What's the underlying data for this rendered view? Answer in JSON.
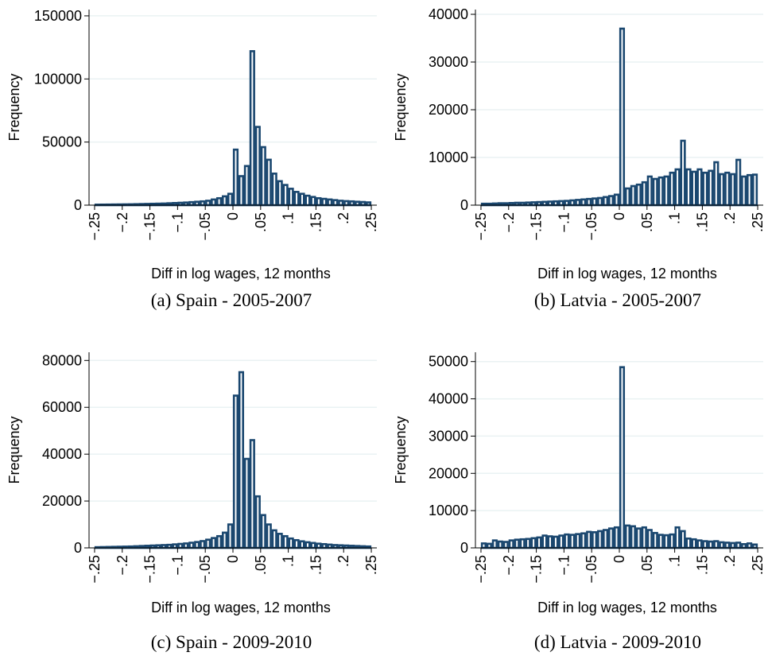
{
  "chart_data": [
    {
      "type": "histogram",
      "caption": "(a) Spain - 2005-2007",
      "xlabel": "Diff in log wages, 12 months",
      "ylabel": "Frequency",
      "color": "#1a476f",
      "grid": true,
      "bins": [
        -0.25,
        -0.24,
        -0.23,
        -0.22,
        -0.21,
        -0.2,
        -0.19,
        -0.18,
        -0.17,
        -0.16,
        -0.15,
        -0.14,
        -0.13,
        -0.12,
        -0.11,
        -0.1,
        -0.09,
        -0.08,
        -0.07,
        -0.06,
        -0.05,
        -0.04,
        -0.03,
        -0.02,
        -0.01,
        0,
        0.01,
        0.02,
        0.03,
        0.04,
        0.05,
        0.06,
        0.07,
        0.08,
        0.09,
        0.1,
        0.11,
        0.12,
        0.13,
        0.14,
        0.15,
        0.16,
        0.17,
        0.18,
        0.19,
        0.2,
        0.21,
        0.22,
        0.23,
        0.24,
        0.25
      ],
      "counts": [
        400,
        450,
        500,
        550,
        600,
        650,
        700,
        800,
        900,
        1000,
        1100,
        1200,
        1300,
        1500,
        1700,
        1900,
        2100,
        2400,
        2700,
        3000,
        3500,
        4500,
        5500,
        7000,
        9000,
        44000,
        23000,
        31000,
        122000,
        62000,
        46000,
        36000,
        25000,
        19000,
        16000,
        13000,
        10500,
        9000,
        7500,
        6500,
        5500,
        5000,
        4500,
        4000,
        3500,
        3200,
        3000,
        2700,
        2500,
        2200
      ],
      "xlim": [
        -0.26,
        0.26
      ],
      "ylim": [
        0,
        155000
      ],
      "xticks": [
        {
          "value": -0.25,
          "label": "−.25"
        },
        {
          "value": -0.2,
          "label": "−.2"
        },
        {
          "value": -0.15,
          "label": "−.15"
        },
        {
          "value": -0.1,
          "label": "−.1"
        },
        {
          "value": -0.05,
          "label": "−.05"
        },
        0,
        {
          "value": 0.05,
          "label": ".05"
        },
        {
          "value": 0.1,
          "label": ".1"
        },
        {
          "value": 0.15,
          "label": ".15"
        },
        {
          "value": 0.2,
          "label": ".2"
        },
        {
          "value": 0.25,
          "label": ".25"
        }
      ],
      "yticks": [
        0,
        50000,
        100000,
        150000
      ]
    },
    {
      "type": "histogram",
      "caption": "(b) Latvia - 2005-2007",
      "xlabel": "Diff in log wages, 12 months",
      "ylabel": "Frequency",
      "color": "#1a476f",
      "grid": true,
      "bins": [
        -0.25,
        -0.24,
        -0.23,
        -0.22,
        -0.21,
        -0.2,
        -0.19,
        -0.18,
        -0.17,
        -0.16,
        -0.15,
        -0.14,
        -0.13,
        -0.12,
        -0.11,
        -0.1,
        -0.09,
        -0.08,
        -0.07,
        -0.06,
        -0.05,
        -0.04,
        -0.03,
        -0.02,
        -0.01,
        0,
        0.01,
        0.02,
        0.03,
        0.04,
        0.05,
        0.06,
        0.07,
        0.08,
        0.09,
        0.1,
        0.11,
        0.12,
        0.13,
        0.14,
        0.15,
        0.16,
        0.17,
        0.18,
        0.19,
        0.2,
        0.21,
        0.22,
        0.23,
        0.24,
        0.25
      ],
      "counts": [
        300,
        300,
        350,
        400,
        400,
        450,
        500,
        500,
        550,
        600,
        650,
        700,
        750,
        800,
        850,
        900,
        1000,
        1100,
        1200,
        1300,
        1400,
        1500,
        1700,
        1900,
        2200,
        37000,
        3500,
        4000,
        4300,
        4800,
        6000,
        5500,
        5800,
        6000,
        6800,
        7500,
        13500,
        7500,
        7000,
        7500,
        6800,
        7200,
        9000,
        6500,
        6800,
        6500,
        9500,
        6000,
        6300,
        6400
      ],
      "xlim": [
        -0.26,
        0.26
      ],
      "ylim": [
        0,
        41000
      ],
      "xticks": [
        {
          "value": -0.25,
          "label": "−.25"
        },
        {
          "value": -0.2,
          "label": "−.2"
        },
        {
          "value": -0.15,
          "label": "−.15"
        },
        {
          "value": -0.1,
          "label": "−.1"
        },
        {
          "value": -0.05,
          "label": "−.05"
        },
        0,
        {
          "value": 0.05,
          "label": ".05"
        },
        {
          "value": 0.1,
          "label": ".1"
        },
        {
          "value": 0.15,
          "label": ".15"
        },
        {
          "value": 0.2,
          "label": ".2"
        },
        {
          "value": 0.25,
          "label": ".25"
        }
      ],
      "yticks": [
        0,
        10000,
        20000,
        30000,
        40000
      ]
    },
    {
      "type": "histogram",
      "caption": "(c) Spain - 2009-2010",
      "xlabel": "Diff in log wages, 12 months",
      "ylabel": "Frequency",
      "color": "#1a476f",
      "grid": true,
      "bins": [
        -0.25,
        -0.24,
        -0.23,
        -0.22,
        -0.21,
        -0.2,
        -0.19,
        -0.18,
        -0.17,
        -0.16,
        -0.15,
        -0.14,
        -0.13,
        -0.12,
        -0.11,
        -0.1,
        -0.09,
        -0.08,
        -0.07,
        -0.06,
        -0.05,
        -0.04,
        -0.03,
        -0.02,
        -0.01,
        0,
        0.01,
        0.02,
        0.03,
        0.04,
        0.05,
        0.06,
        0.07,
        0.08,
        0.09,
        0.1,
        0.11,
        0.12,
        0.13,
        0.14,
        0.15,
        0.16,
        0.17,
        0.18,
        0.19,
        0.2,
        0.21,
        0.22,
        0.23,
        0.24,
        0.25
      ],
      "counts": [
        300,
        350,
        400,
        450,
        500,
        550,
        600,
        700,
        800,
        900,
        1000,
        1100,
        1200,
        1300,
        1500,
        1700,
        1900,
        2200,
        2500,
        2900,
        3500,
        4200,
        5000,
        6500,
        10000,
        65000,
        75000,
        38000,
        46000,
        22000,
        14000,
        10000,
        7500,
        6000,
        5000,
        4000,
        3300,
        2800,
        2400,
        2100,
        1800,
        1600,
        1400,
        1200,
        1100,
        1000,
        900,
        800,
        700,
        600
      ],
      "xlim": [
        -0.26,
        0.26
      ],
      "ylim": [
        0,
        83500
      ],
      "xticks": [
        {
          "value": -0.25,
          "label": "−.25"
        },
        {
          "value": -0.2,
          "label": "−.2"
        },
        {
          "value": -0.15,
          "label": "−.15"
        },
        {
          "value": -0.1,
          "label": "−.1"
        },
        {
          "value": -0.05,
          "label": "−.05"
        },
        0,
        {
          "value": 0.05,
          "label": ".05"
        },
        {
          "value": 0.1,
          "label": ".1"
        },
        {
          "value": 0.15,
          "label": ".15"
        },
        {
          "value": 0.2,
          "label": ".2"
        },
        {
          "value": 0.25,
          "label": ".25"
        }
      ],
      "yticks": [
        0,
        20000,
        40000,
        60000,
        80000
      ]
    },
    {
      "type": "histogram",
      "caption": "(d) Latvia - 2009-2010",
      "xlabel": "Diff in log wages, 12 months",
      "ylabel": "Frequency",
      "color": "#1a476f",
      "grid": true,
      "bins": [
        -0.25,
        -0.24,
        -0.23,
        -0.22,
        -0.21,
        -0.2,
        -0.19,
        -0.18,
        -0.17,
        -0.16,
        -0.15,
        -0.14,
        -0.13,
        -0.12,
        -0.11,
        -0.1,
        -0.09,
        -0.08,
        -0.07,
        -0.06,
        -0.05,
        -0.04,
        -0.03,
        -0.02,
        -0.01,
        0,
        0.01,
        0.02,
        0.03,
        0.04,
        0.05,
        0.06,
        0.07,
        0.08,
        0.09,
        0.1,
        0.11,
        0.12,
        0.13,
        0.14,
        0.15,
        0.16,
        0.17,
        0.18,
        0.19,
        0.2,
        0.21,
        0.22,
        0.23,
        0.24,
        0.25
      ],
      "counts": [
        1200,
        1100,
        2000,
        1700,
        1600,
        2000,
        2200,
        2300,
        2400,
        2600,
        2800,
        3300,
        3100,
        3000,
        3300,
        3600,
        3500,
        3700,
        3900,
        4300,
        4200,
        4500,
        4800,
        5200,
        5500,
        48500,
        6000,
        5800,
        5200,
        5500,
        4800,
        4000,
        3500,
        3400,
        3600,
        5500,
        4500,
        2500,
        2300,
        2000,
        1800,
        1700,
        1800,
        1500,
        1400,
        1300,
        1400,
        1000,
        1200,
        900
      ],
      "xlim": [
        -0.26,
        0.26
      ],
      "ylim": [
        0,
        52500
      ],
      "xticks": [
        {
          "value": -0.25,
          "label": "−.25"
        },
        {
          "value": -0.2,
          "label": "−.2"
        },
        {
          "value": -0.15,
          "label": "−.15"
        },
        {
          "value": -0.1,
          "label": "−.1"
        },
        {
          "value": -0.05,
          "label": "−.05"
        },
        0,
        {
          "value": 0.05,
          "label": ".05"
        },
        {
          "value": 0.1,
          "label": ".1"
        },
        {
          "value": 0.15,
          "label": ".15"
        },
        {
          "value": 0.2,
          "label": ".2"
        },
        {
          "value": 0.25,
          "label": ".25"
        }
      ],
      "yticks": [
        0,
        10000,
        20000,
        30000,
        40000,
        50000
      ]
    }
  ]
}
